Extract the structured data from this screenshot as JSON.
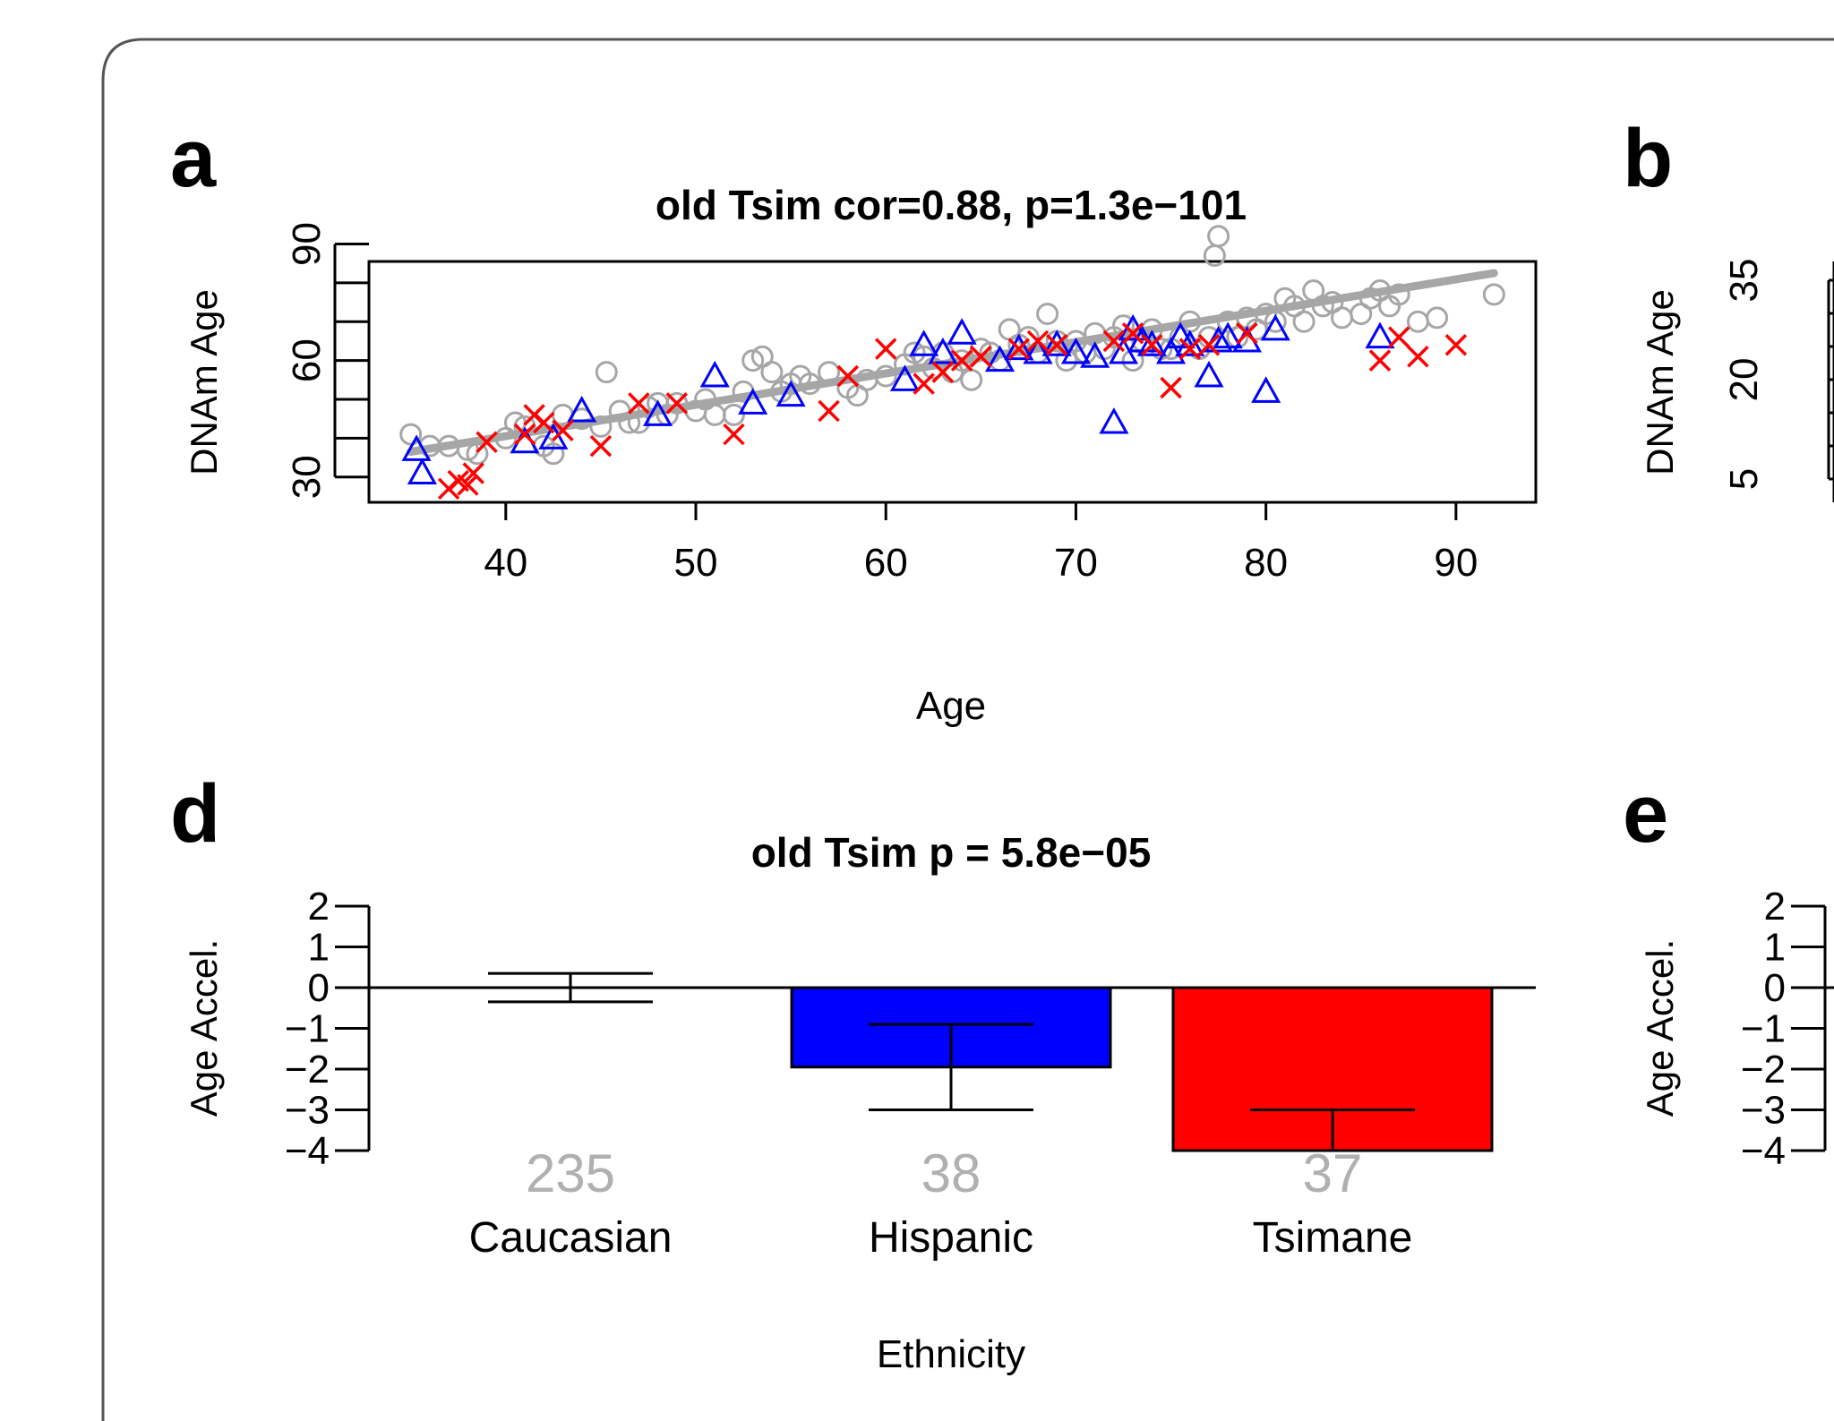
{
  "panels": {
    "a": {
      "letter": "a"
    },
    "b": {
      "letter": "b"
    },
    "d": {
      "letter": "d"
    },
    "e": {
      "letter": "e"
    }
  },
  "b_axis": {
    "ylabel": "DNAm Age",
    "yticks": [
      "5",
      "20",
      "35"
    ]
  },
  "e_axis": {
    "ylabel": "Age Accel.",
    "yticks": [
      "2",
      "1",
      "0",
      "−1",
      "−2",
      "−3",
      "−4"
    ]
  },
  "colors": {
    "caucasian": "#a6a6a6",
    "hispanic": "#0000ff",
    "tsimane": "#ff0000",
    "frame": "#000000"
  },
  "chart_data": [
    {
      "type": "scatter",
      "title": "old Tsim cor=0.88, p=1.3e−101",
      "xlabel": "Age",
      "ylabel": "DNAm Age",
      "xlim": [
        32.8,
        94.2
      ],
      "ylim": [
        23.5,
        85.5
      ],
      "xticks": [
        40,
        50,
        60,
        70,
        80,
        90
      ],
      "yticks": [
        30,
        60,
        90
      ],
      "grid": false,
      "regression_line": {
        "x": [
          35,
          92
        ],
        "y": [
          36.5,
          82.5
        ]
      },
      "series": [
        {
          "marker": "circle",
          "color": "#a6a6a6",
          "points": [
            [
              35,
              41
            ],
            [
              36,
              38
            ],
            [
              37,
              38
            ],
            [
              38,
              37
            ],
            [
              38.5,
              36
            ],
            [
              40,
              40
            ],
            [
              40.5,
              44
            ],
            [
              41,
              43
            ],
            [
              42,
              38
            ],
            [
              42.5,
              36
            ],
            [
              43,
              46
            ],
            [
              44,
              45
            ],
            [
              45,
              43
            ],
            [
              45.3,
              57
            ],
            [
              46,
              47
            ],
            [
              46.5,
              44
            ],
            [
              47,
              44
            ],
            [
              47.5,
              48
            ],
            [
              48,
              49
            ],
            [
              48.5,
              46
            ],
            [
              49,
              49
            ],
            [
              50,
              47
            ],
            [
              50.5,
              50
            ],
            [
              51,
              46
            ],
            [
              52,
              46
            ],
            [
              52.5,
              52
            ],
            [
              53,
              60
            ],
            [
              53.5,
              61
            ],
            [
              54,
              57
            ],
            [
              54.5,
              52
            ],
            [
              55,
              54
            ],
            [
              55.5,
              56
            ],
            [
              56,
              54
            ],
            [
              57,
              57
            ],
            [
              58,
              53
            ],
            [
              58.5,
              51
            ],
            [
              59,
              55
            ],
            [
              60,
              56
            ],
            [
              61,
              59
            ],
            [
              61.5,
              62
            ],
            [
              62,
              61
            ],
            [
              62.5,
              58
            ],
            [
              63,
              62
            ],
            [
              63.5,
              57
            ],
            [
              64,
              60
            ],
            [
              64.5,
              55
            ],
            [
              65,
              63
            ],
            [
              65.5,
              62
            ],
            [
              66,
              60
            ],
            [
              66.5,
              68
            ],
            [
              67,
              64
            ],
            [
              67.5,
              66
            ],
            [
              68,
              62
            ],
            [
              68.5,
              72
            ],
            [
              69,
              65
            ],
            [
              69.5,
              60
            ],
            [
              70,
              65
            ],
            [
              70.5,
              62
            ],
            [
              71,
              67
            ],
            [
              71.5,
              63
            ],
            [
              72,
              66
            ],
            [
              72.5,
              69
            ],
            [
              73,
              60
            ],
            [
              73.5,
              65
            ],
            [
              74,
              68
            ],
            [
              74.5,
              63
            ],
            [
              75,
              63
            ],
            [
              75.5,
              66
            ],
            [
              76,
              70
            ],
            [
              76.5,
              63
            ],
            [
              77,
              66
            ],
            [
              77.5,
              92
            ],
            [
              77.3,
              87
            ],
            [
              78,
              70
            ],
            [
              78.5,
              66
            ],
            [
              79,
              71
            ],
            [
              79.5,
              68
            ],
            [
              80,
              72
            ],
            [
              80.5,
              70
            ],
            [
              81,
              76
            ],
            [
              81.5,
              74
            ],
            [
              82,
              70
            ],
            [
              82.5,
              78
            ],
            [
              83,
              74
            ],
            [
              83.5,
              75
            ],
            [
              84,
              71
            ],
            [
              85,
              72
            ],
            [
              85.5,
              76
            ],
            [
              86,
              78
            ],
            [
              86.5,
              74
            ],
            [
              87,
              77
            ],
            [
              88,
              70
            ],
            [
              89,
              71
            ],
            [
              92,
              77
            ]
          ]
        },
        {
          "marker": "triangle",
          "color": "#0000ff",
          "points": [
            [
              35.3,
              37
            ],
            [
              35.6,
              31
            ],
            [
              41,
              39
            ],
            [
              42.5,
              40
            ],
            [
              44,
              47
            ],
            [
              48,
              46
            ],
            [
              51,
              56
            ],
            [
              53,
              49
            ],
            [
              55,
              51
            ],
            [
              61,
              55
            ],
            [
              62,
              64
            ],
            [
              63,
              62
            ],
            [
              64,
              67
            ],
            [
              66,
              60
            ],
            [
              67,
              63
            ],
            [
              68,
              62
            ],
            [
              69,
              64
            ],
            [
              70,
              62
            ],
            [
              71,
              61
            ],
            [
              72,
              44
            ],
            [
              72.5,
              62
            ],
            [
              73,
              68
            ],
            [
              73.5,
              65
            ],
            [
              74,
              64
            ],
            [
              75,
              62
            ],
            [
              75.5,
              66
            ],
            [
              76,
              64
            ],
            [
              77,
              56
            ],
            [
              77.5,
              65
            ],
            [
              78,
              66
            ],
            [
              79,
              65
            ],
            [
              80,
              52
            ],
            [
              80.5,
              68
            ],
            [
              86,
              66
            ]
          ]
        },
        {
          "marker": "cross",
          "color": "#ff0000",
          "points": [
            [
              37,
              27
            ],
            [
              37.5,
              29
            ],
            [
              38,
              28
            ],
            [
              38.3,
              31
            ],
            [
              39,
              39
            ],
            [
              41,
              41
            ],
            [
              41.5,
              46
            ],
            [
              42,
              44
            ],
            [
              43,
              42
            ],
            [
              45,
              38
            ],
            [
              47,
              49
            ],
            [
              49,
              49
            ],
            [
              52,
              41
            ],
            [
              57,
              47
            ],
            [
              58,
              56
            ],
            [
              60,
              63
            ],
            [
              62,
              54
            ],
            [
              63,
              57
            ],
            [
              64,
              60
            ],
            [
              65,
              61
            ],
            [
              67,
              63
            ],
            [
              68,
              65
            ],
            [
              69,
              64
            ],
            [
              72,
              65
            ],
            [
              73,
              67
            ],
            [
              74,
              64
            ],
            [
              75,
              53
            ],
            [
              76,
              63
            ],
            [
              77,
              64
            ],
            [
              79,
              67
            ],
            [
              86,
              60
            ],
            [
              87,
              66
            ],
            [
              88,
              61
            ],
            [
              90,
              64
            ]
          ]
        }
      ]
    },
    {
      "type": "bar",
      "title": "old Tsim p = 5.8e−05",
      "xlabel": "Ethnicity",
      "ylabel": "Age Accel.",
      "ylim": [
        -4,
        2
      ],
      "yticks": [
        2,
        1,
        0,
        -1,
        -2,
        -3,
        -4
      ],
      "ytick_labels": [
        "2",
        "1",
        "0",
        "−1",
        "−2",
        "−3",
        "−4"
      ],
      "categories": [
        "Caucasian",
        "Hispanic",
        "Tsimane"
      ],
      "counts": [
        "235",
        "38",
        "37"
      ],
      "values": [
        0.0,
        -1.95,
        -4.0
      ],
      "error_low": [
        -0.35,
        -3.0,
        -4.0
      ],
      "error_high": [
        0.35,
        -0.9,
        -3.0
      ],
      "colors": [
        "#ffffff",
        "#0000ff",
        "#ff0000"
      ],
      "grid": false
    }
  ]
}
